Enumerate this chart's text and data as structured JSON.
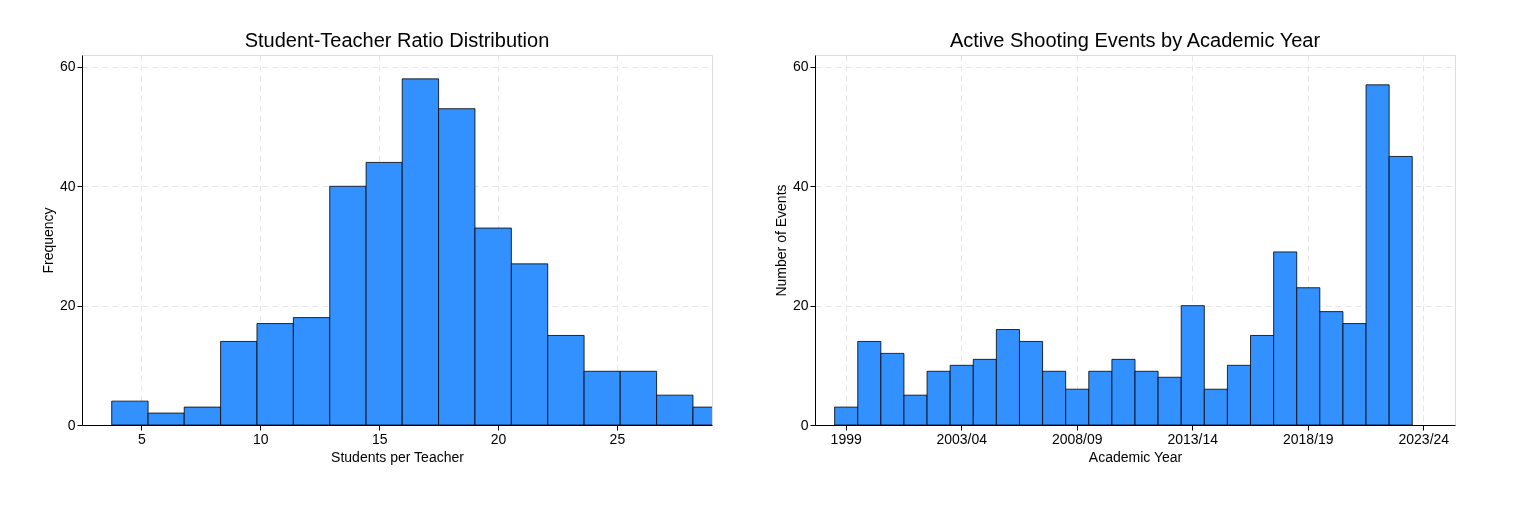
{
  "chart_data": [
    {
      "type": "histogram",
      "title": "Student-Teacher Ratio Distribution",
      "xlabel": "Students per Teacher",
      "ylabel": "Frequency",
      "bins": [
        3.75,
        5.28,
        6.8,
        8.33,
        9.86,
        11.39,
        12.92,
        14.45,
        15.97,
        17.5,
        19.03,
        20.56,
        22.09,
        23.62,
        25.14,
        26.67,
        28.2,
        29.73
      ],
      "values": [
        4,
        2,
        3,
        14,
        17,
        18,
        40,
        44,
        58,
        53,
        33,
        27,
        15,
        9,
        9,
        5,
        3
      ],
      "color": "#3290ff",
      "xlim": [
        2.5,
        29
      ],
      "xticks": [
        5,
        10,
        15,
        20,
        25
      ],
      "ylim": [
        0,
        62
      ],
      "yticks": [
        0,
        20,
        40,
        60
      ],
      "grid": true
    },
    {
      "type": "bar",
      "title": "Active Shooting Events by Academic Year",
      "xlabel": "Academic Year",
      "ylabel": "Number of Events",
      "categories": [
        "1999",
        null,
        null,
        null,
        null,
        "2003/04",
        null,
        null,
        null,
        null,
        "2008/09",
        null,
        null,
        null,
        null,
        "2013/14",
        null,
        null,
        null,
        null,
        "2018/19",
        null,
        null,
        null,
        null,
        "2023/24"
      ],
      "values": [
        3,
        14,
        12,
        5,
        9,
        10,
        11,
        16,
        14,
        9,
        6,
        9,
        11,
        9,
        8,
        20,
        6,
        10,
        15,
        29,
        23,
        19,
        17,
        57,
        45,
        null
      ],
      "color": "#3290ff",
      "ylim": [
        0,
        62
      ],
      "yticks": [
        0,
        20,
        40,
        60
      ],
      "grid": true
    }
  ]
}
